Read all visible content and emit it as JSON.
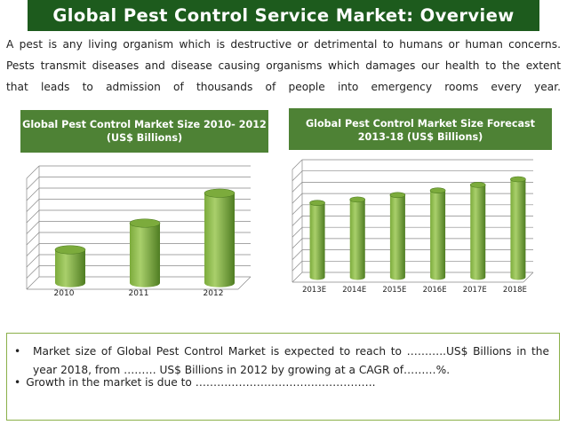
{
  "page": {
    "title": "Global Pest Control Service Market: Overview",
    "intro_lines": [
      "A pest is any living organism which is destructive or detrimental to humans or human concerns.",
      "Pests transmit diseases and disease causing organisms which damages our health to the extent",
      "that leads to admission of thousands of people into emergency rooms every year."
    ]
  },
  "chart_data": [
    {
      "type": "bar",
      "title": "Global Pest Control Market Size 2010- 2012 (US$ Billions)",
      "title_lines": [
        "Global Pest Control Market Size 2010- 2012",
        "(US$ Billions)"
      ],
      "categories": [
        "2010",
        "2011",
        "2012"
      ],
      "values": [
        3.0,
        5.4,
        8.1
      ],
      "ylim": [
        0,
        10
      ],
      "grid": true,
      "xlabel": "",
      "ylabel": ""
    },
    {
      "type": "bar",
      "title": "Global Pest Control Market Size Forecast 2013-18 (US$ Billions)",
      "title_lines": [
        "Global Pest Control Market Size Forecast",
        "2013-18 (US$ Billions)"
      ],
      "categories": [
        "2013E",
        "2014E",
        "2015E",
        "2016E",
        "2017E",
        "2018E"
      ],
      "values": [
        6.6,
        6.9,
        7.3,
        7.7,
        8.2,
        8.7
      ],
      "ylim": [
        0,
        10
      ],
      "grid": true,
      "xlabel": "",
      "ylabel": ""
    }
  ],
  "summary": {
    "bullet_char": "•",
    "bullet1": "Market size of Global Pest Control Market is expected to reach to ………..US$ Billions in the year 2018, from ……… US$ Billions in 2012 by growing at a CAGR of………%.",
    "bullet2": "Growth in the market is due to ………………………………………….."
  },
  "colors": {
    "title_bg": "#1d5b1d",
    "header_bg": "#4e8235",
    "bar_light": "#a9cf6b",
    "bar_mid": "#7cab3c",
    "bar_dark": "#4f7d22",
    "grid": "#888888",
    "box_border": "#8bb04a"
  }
}
